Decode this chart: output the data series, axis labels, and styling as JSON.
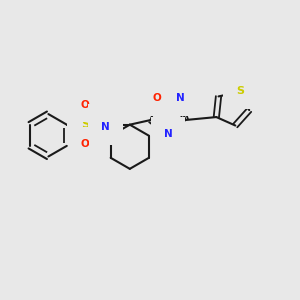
{
  "background_color": "#e8e8e8",
  "bond_color": "#1a1a1a",
  "atom_colors": {
    "S": "#cccc00",
    "O": "#ff2200",
    "N": "#2222ff",
    "H": "#5a8a5a",
    "C": "#1a1a1a"
  },
  "figsize": [
    3.0,
    3.0
  ],
  "dpi": 100
}
